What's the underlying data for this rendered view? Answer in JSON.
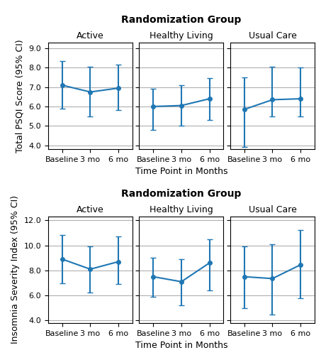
{
  "row_titles": [
    "Randomization Group",
    "Randomization Group"
  ],
  "chart_data": [
    {
      "type": "line",
      "title": "Active",
      "categories": [
        "Baseline",
        "3 mo",
        "6 mo"
      ],
      "values": [
        7.1,
        6.75,
        6.95
      ],
      "ci_lower": [
        5.9,
        5.5,
        5.8
      ],
      "ci_upper": [
        8.35,
        8.05,
        8.15
      ],
      "ylabel": "Total PSQI Score (95% CI)",
      "ylim": [
        3.8,
        9.3
      ],
      "yticks": [
        {
          "value": 4.0,
          "label": "4.0"
        },
        {
          "value": 5.0,
          "label": "5.0"
        },
        {
          "value": 6.0,
          "label": "6.0"
        },
        {
          "value": 7.0,
          "label": "7.0"
        },
        {
          "value": 8.0,
          "label": "8.0"
        },
        {
          "value": 9.0,
          "label": "9.0"
        }
      ],
      "grid": "y",
      "marker": "o",
      "line_style": "solid"
    },
    {
      "type": "line",
      "title": "Healthy Living",
      "categories": [
        "Baseline",
        "3 mo",
        "6 mo"
      ],
      "values": [
        6.0,
        6.05,
        6.4
      ],
      "ci_lower": [
        4.8,
        5.0,
        5.3
      ],
      "ci_upper": [
        6.9,
        7.1,
        7.45
      ],
      "xlabel": "Time Point in Months",
      "ylim": [
        3.8,
        9.3
      ],
      "yticks": [
        {
          "value": 4.0,
          "label": "4.0"
        },
        {
          "value": 5.0,
          "label": "5.0"
        },
        {
          "value": 6.0,
          "label": "6.0"
        },
        {
          "value": 7.0,
          "label": "7.0"
        },
        {
          "value": 8.0,
          "label": "8.0"
        },
        {
          "value": 9.0,
          "label": "9.0"
        }
      ],
      "tick_labels": "x",
      "grid": "y",
      "marker": "o",
      "line_style": "solid"
    },
    {
      "type": "line",
      "title": "Usual Care",
      "categories": [
        "Baseline",
        "3 mo",
        "6 mo"
      ],
      "values": [
        5.85,
        6.35,
        6.4
      ],
      "ci_lower": [
        3.9,
        5.5,
        5.5
      ],
      "ci_upper": [
        7.5,
        8.05,
        8.0
      ],
      "ylim": [
        3.8,
        9.3
      ],
      "yticks": [
        {
          "value": 4.0,
          "label": "4.0"
        },
        {
          "value": 5.0,
          "label": "5.0"
        },
        {
          "value": 6.0,
          "label": "6.0"
        },
        {
          "value": 7.0,
          "label": "7.0"
        },
        {
          "value": 8.0,
          "label": "8.0"
        },
        {
          "value": 9.0,
          "label": "9.0"
        }
      ],
      "tick_labels": "x",
      "grid": "y",
      "marker": "o",
      "line_style": "solid"
    },
    {
      "type": "line",
      "title": "Active",
      "categories": [
        "Baseline",
        "3 mo",
        "6 mo"
      ],
      "values": [
        8.9,
        8.1,
        8.7
      ],
      "ci_lower": [
        7.0,
        6.25,
        6.9
      ],
      "ci_upper": [
        10.8,
        9.9,
        10.7
      ],
      "ylabel": "Insomnia Severity Index (95% CI)",
      "ylim": [
        3.8,
        12.3
      ],
      "yticks": [
        {
          "value": 4.0,
          "label": "4.0"
        },
        {
          "value": 6.0,
          "label": "6.0"
        },
        {
          "value": 8.0,
          "label": "8.0"
        },
        {
          "value": 10.0,
          "label": "10.0"
        },
        {
          "value": 12.0,
          "label": "12.0"
        }
      ],
      "grid": "y",
      "marker": "o",
      "line_style": "solid"
    },
    {
      "type": "line",
      "title": "Healthy Living",
      "categories": [
        "Baseline",
        "3 mo",
        "6 mo"
      ],
      "values": [
        7.5,
        7.1,
        8.6
      ],
      "ci_lower": [
        5.9,
        5.2,
        6.4
      ],
      "ci_upper": [
        9.0,
        8.9,
        10.5
      ],
      "xlabel": "Time Point in Months",
      "ylim": [
        3.8,
        12.3
      ],
      "yticks": [
        {
          "value": 4.0,
          "label": "4.0"
        },
        {
          "value": 6.0,
          "label": "6.0"
        },
        {
          "value": 8.0,
          "label": "8.0"
        },
        {
          "value": 10.0,
          "label": "10.0"
        },
        {
          "value": 12.0,
          "label": "12.0"
        }
      ],
      "tick_labels": "x",
      "grid": "y",
      "marker": "o",
      "line_style": "solid"
    },
    {
      "type": "line",
      "title": "Usual Care",
      "categories": [
        "Baseline",
        "3 mo",
        "6 mo"
      ],
      "values": [
        7.5,
        7.35,
        8.45
      ],
      "ci_lower": [
        5.0,
        4.5,
        5.8
      ],
      "ci_upper": [
        9.9,
        10.1,
        11.2
      ],
      "ylim": [
        3.8,
        12.3
      ],
      "yticks": [
        {
          "value": 4.0,
          "label": "4.0"
        },
        {
          "value": 6.0,
          "label": "6.0"
        },
        {
          "value": 8.0,
          "label": "8.0"
        },
        {
          "value": 10.0,
          "label": "10.0"
        },
        {
          "value": 12.0,
          "label": "12.0"
        }
      ],
      "tick_labels": "x",
      "grid": "y",
      "marker": "o",
      "line_style": "solid"
    }
  ]
}
